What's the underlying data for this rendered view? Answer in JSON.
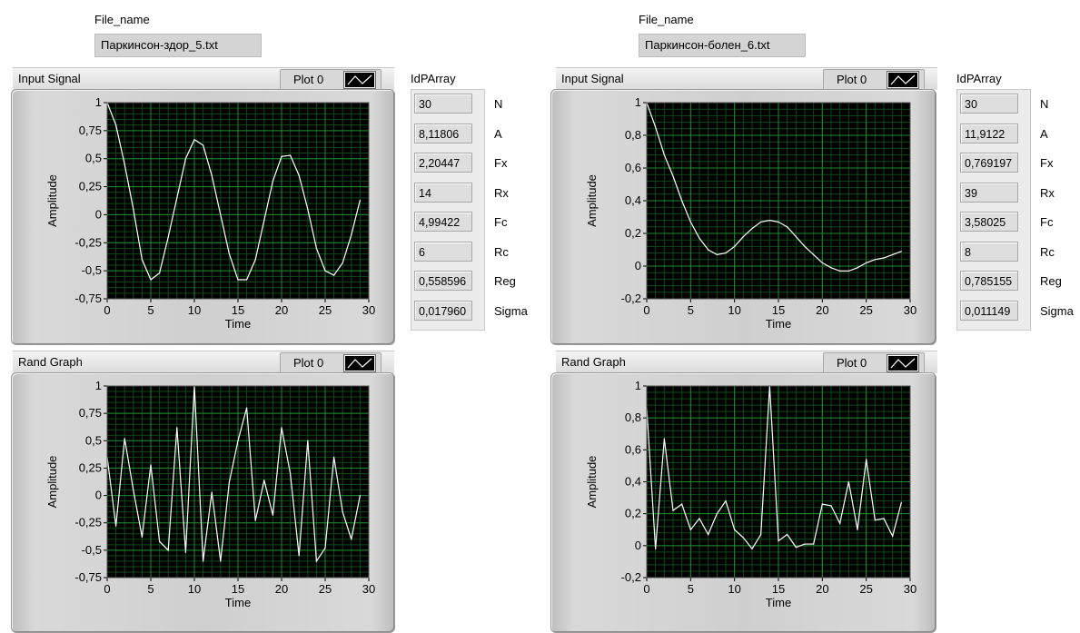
{
  "left": {
    "file_label": "File_name",
    "file_value": "Паркинсон-здор_5.txt",
    "input_graph": {
      "title": "Input Signal",
      "legend": "Plot 0",
      "ylabel": "Amplitude",
      "xlabel": "Time",
      "xticks": [
        "0",
        "5",
        "10",
        "15",
        "20",
        "25",
        "30"
      ],
      "yticks": [
        "1",
        "0,75",
        "0,5",
        "0,25",
        "0",
        "-0,25",
        "-0,5",
        "-0,75"
      ]
    },
    "rand_graph": {
      "title": "Rand Graph",
      "legend": "Plot 0",
      "ylabel": "Amplitude",
      "xlabel": "Time",
      "xticks": [
        "0",
        "5",
        "10",
        "15",
        "20",
        "25",
        "30"
      ],
      "yticks": [
        "1",
        "0,75",
        "0,5",
        "0,25",
        "0",
        "-0,25",
        "-0,5",
        "-0,75"
      ]
    },
    "idparray": {
      "title": "IdPArray",
      "rows": [
        {
          "value": "30",
          "name": "N"
        },
        {
          "value": "8,11806",
          "name": "A"
        },
        {
          "value": "2,20447",
          "name": "Fx"
        },
        {
          "value": "14",
          "name": "Rx"
        },
        {
          "value": "4,99422",
          "name": "Fc"
        },
        {
          "value": "6",
          "name": "Rc"
        },
        {
          "value": "0,558596",
          "name": "Reg"
        },
        {
          "value": "0,017960",
          "name": "Sigma"
        }
      ]
    }
  },
  "right": {
    "file_label": "File_name",
    "file_value": "Паркинсон-болен_6.txt",
    "input_graph": {
      "title": "Input Signal",
      "legend": "Plot 0",
      "ylabel": "Amplitude",
      "xlabel": "Time",
      "xticks": [
        "0",
        "5",
        "10",
        "15",
        "20",
        "25",
        "30"
      ],
      "yticks": [
        "1",
        "0,8",
        "0,6",
        "0,4",
        "0,2",
        "0",
        "-0,2"
      ]
    },
    "rand_graph": {
      "title": "Rand Graph",
      "legend": "Plot 0",
      "ylabel": "Amplitude",
      "xlabel": "Time",
      "xticks": [
        "0",
        "5",
        "10",
        "15",
        "20",
        "25",
        "30"
      ],
      "yticks": [
        "1",
        "0,8",
        "0,6",
        "0,4",
        "0,2",
        "0",
        "-0,2"
      ]
    },
    "idparray": {
      "title": "IdPArray",
      "rows": [
        {
          "value": "30",
          "name": "N"
        },
        {
          "value": "11,9122",
          "name": "A"
        },
        {
          "value": "0,769197",
          "name": "Fx"
        },
        {
          "value": "39",
          "name": "Rx"
        },
        {
          "value": "3,58025",
          "name": "Fc"
        },
        {
          "value": "8",
          "name": "Rc"
        },
        {
          "value": "0,785155",
          "name": "Reg"
        },
        {
          "value": "0,011149",
          "name": "Sigma"
        }
      ]
    }
  },
  "colors": {
    "plot_bg": "#000000",
    "grid_major": "#1e8a2e",
    "grid_minor": "#0f4a18",
    "trace": "#ffffff"
  },
  "chart_data": [
    {
      "type": "line",
      "title": "Input Signal",
      "xlabel": "Time",
      "ylabel": "Amplitude",
      "xlim": [
        0,
        30
      ],
      "ylim": [
        -0.75,
        1
      ],
      "x": [
        0,
        1,
        2,
        3,
        4,
        5,
        6,
        7,
        8,
        9,
        10,
        11,
        12,
        13,
        14,
        15,
        16,
        17,
        18,
        19,
        20,
        21,
        22,
        23,
        24,
        25,
        26,
        27,
        28,
        29
      ],
      "series": [
        {
          "values": [
            1,
            0.8,
            0.45,
            0.05,
            -0.4,
            -0.58,
            -0.52,
            -0.2,
            0.15,
            0.5,
            0.67,
            0.62,
            0.35,
            0.0,
            -0.35,
            -0.58,
            -0.58,
            -0.4,
            -0.05,
            0.3,
            0.52,
            0.53,
            0.35,
            0.05,
            -0.3,
            -0.5,
            -0.54,
            -0.43,
            -0.18,
            0.13
          ]
        }
      ]
    },
    {
      "type": "line",
      "title": "Rand Graph",
      "xlabel": "Time",
      "ylabel": "Amplitude",
      "xlim": [
        0,
        30
      ],
      "ylim": [
        -0.75,
        1
      ],
      "x": [
        0,
        1,
        2,
        3,
        4,
        5,
        6,
        7,
        8,
        9,
        10,
        11,
        12,
        13,
        14,
        15,
        16,
        17,
        18,
        19,
        20,
        21,
        22,
        23,
        24,
        25,
        26,
        27,
        28,
        29
      ],
      "series": [
        {
          "values": [
            0.35,
            -0.28,
            0.52,
            0.05,
            -0.38,
            0.28,
            -0.42,
            -0.5,
            0.62,
            -0.52,
            1.0,
            -0.6,
            0.03,
            -0.6,
            0.12,
            0.5,
            0.8,
            -0.23,
            0.14,
            -0.18,
            0.62,
            0.2,
            -0.55,
            0.5,
            -0.6,
            -0.48,
            0.35,
            -0.15,
            -0.4,
            0.0
          ]
        }
      ]
    },
    {
      "type": "line",
      "title": "Input Signal",
      "xlabel": "Time",
      "ylabel": "Amplitude",
      "xlim": [
        0,
        30
      ],
      "ylim": [
        -0.2,
        1
      ],
      "x": [
        0,
        1,
        2,
        3,
        4,
        5,
        6,
        7,
        8,
        9,
        10,
        11,
        12,
        13,
        14,
        15,
        16,
        17,
        18,
        19,
        20,
        21,
        22,
        23,
        24,
        25,
        26,
        27,
        28,
        29
      ],
      "series": [
        {
          "values": [
            1,
            0.85,
            0.68,
            0.55,
            0.4,
            0.27,
            0.17,
            0.1,
            0.07,
            0.08,
            0.12,
            0.18,
            0.23,
            0.27,
            0.28,
            0.27,
            0.24,
            0.18,
            0.12,
            0.07,
            0.02,
            -0.01,
            -0.03,
            -0.03,
            -0.01,
            0.02,
            0.04,
            0.05,
            0.07,
            0.09
          ]
        }
      ]
    },
    {
      "type": "line",
      "title": "Rand Graph",
      "xlabel": "Time",
      "ylabel": "Amplitude",
      "xlim": [
        0,
        30
      ],
      "ylim": [
        -0.2,
        1
      ],
      "x": [
        0,
        1,
        2,
        3,
        4,
        5,
        6,
        7,
        8,
        9,
        10,
        11,
        12,
        13,
        14,
        15,
        16,
        17,
        18,
        19,
        20,
        21,
        22,
        23,
        24,
        25,
        26,
        27,
        28,
        29
      ],
      "series": [
        {
          "values": [
            0.86,
            -0.02,
            0.67,
            0.22,
            0.26,
            0.1,
            0.17,
            0.07,
            0.2,
            0.28,
            0.1,
            0.05,
            -0.02,
            0.07,
            1.0,
            0.03,
            0.07,
            -0.01,
            0.01,
            0.01,
            0.26,
            0.25,
            0.14,
            0.4,
            0.1,
            0.54,
            0.16,
            0.17,
            0.06,
            0.27
          ]
        }
      ]
    }
  ]
}
